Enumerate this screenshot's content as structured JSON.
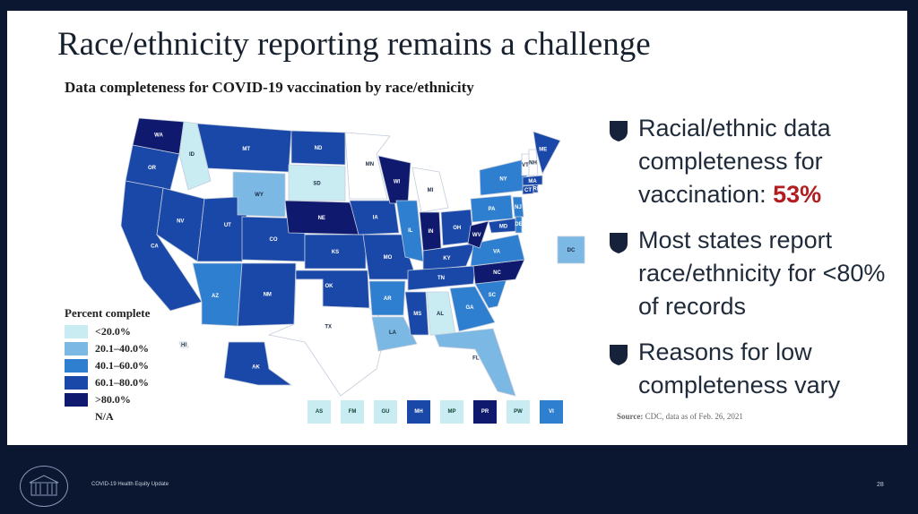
{
  "slide": {
    "title": "Race/ethnicity reporting remains a challenge",
    "subtitle": "Data completeness for COVID-19 vaccination by race/ethnicity"
  },
  "colors": {
    "lt20": "#c9ecf3",
    "r20_40": "#7cb8e4",
    "r40_60": "#2f7fd0",
    "r60_80": "#1a48a8",
    "gt80": "#0f1a6e",
    "na": "#ffffff",
    "accent": "#b01e22"
  },
  "states": [
    {
      "abbr": "WA",
      "cat": "gt80"
    },
    {
      "abbr": "OR",
      "cat": "r60_80"
    },
    {
      "abbr": "CA",
      "cat": "r60_80"
    },
    {
      "abbr": "ID",
      "cat": "lt20"
    },
    {
      "abbr": "NV",
      "cat": "r60_80"
    },
    {
      "abbr": "MT",
      "cat": "r60_80"
    },
    {
      "abbr": "WY",
      "cat": "r20_40"
    },
    {
      "abbr": "UT",
      "cat": "r60_80"
    },
    {
      "abbr": "AZ",
      "cat": "r40_60"
    },
    {
      "abbr": "CO",
      "cat": "r60_80"
    },
    {
      "abbr": "NM",
      "cat": "r60_80"
    },
    {
      "abbr": "ND",
      "cat": "r60_80"
    },
    {
      "abbr": "SD",
      "cat": "lt20"
    },
    {
      "abbr": "NE",
      "cat": "gt80"
    },
    {
      "abbr": "KS",
      "cat": "r60_80"
    },
    {
      "abbr": "OK",
      "cat": "r60_80"
    },
    {
      "abbr": "TX",
      "cat": "na"
    },
    {
      "abbr": "MN",
      "cat": "na"
    },
    {
      "abbr": "IA",
      "cat": "r60_80"
    },
    {
      "abbr": "MO",
      "cat": "r60_80"
    },
    {
      "abbr": "AR",
      "cat": "r40_60"
    },
    {
      "abbr": "LA",
      "cat": "r20_40"
    },
    {
      "abbr": "WI",
      "cat": "gt80"
    },
    {
      "abbr": "IL",
      "cat": "r40_60"
    },
    {
      "abbr": "MI",
      "cat": "na"
    },
    {
      "abbr": "IN",
      "cat": "gt80"
    },
    {
      "abbr": "OH",
      "cat": "r60_80"
    },
    {
      "abbr": "KY",
      "cat": "r60_80"
    },
    {
      "abbr": "TN",
      "cat": "r60_80"
    },
    {
      "abbr": "MS",
      "cat": "r60_80"
    },
    {
      "abbr": "AL",
      "cat": "lt20"
    },
    {
      "abbr": "GA",
      "cat": "r40_60"
    },
    {
      "abbr": "FL",
      "cat": "r20_40"
    },
    {
      "abbr": "SC",
      "cat": "r40_60"
    },
    {
      "abbr": "NC",
      "cat": "gt80"
    },
    {
      "abbr": "VA",
      "cat": "r40_60"
    },
    {
      "abbr": "WV",
      "cat": "gt80"
    },
    {
      "abbr": "PA",
      "cat": "r40_60"
    },
    {
      "abbr": "NY",
      "cat": "r40_60"
    },
    {
      "abbr": "MD",
      "cat": "r60_80"
    },
    {
      "abbr": "DE",
      "cat": "r40_60"
    },
    {
      "abbr": "NJ",
      "cat": "r40_60"
    },
    {
      "abbr": "CT",
      "cat": "r60_80"
    },
    {
      "abbr": "RI",
      "cat": "r60_80"
    },
    {
      "abbr": "MA",
      "cat": "r60_80"
    },
    {
      "abbr": "VT",
      "cat": "na"
    },
    {
      "abbr": "NH",
      "cat": "na"
    },
    {
      "abbr": "ME",
      "cat": "r60_80"
    },
    {
      "abbr": "AK",
      "cat": "r60_80"
    },
    {
      "abbr": "HI",
      "cat": "na"
    },
    {
      "abbr": "DC",
      "cat": "r20_40"
    }
  ],
  "legend": {
    "title": "Percent complete",
    "items": [
      {
        "label": "<20.0%",
        "cat": "lt20"
      },
      {
        "label": "20.1–40.0%",
        "cat": "r20_40"
      },
      {
        "label": "40.1–60.0%",
        "cat": "r40_60"
      },
      {
        "label": "60.1–80.0%",
        "cat": "r60_80"
      },
      {
        "label": ">80.0%",
        "cat": "gt80"
      },
      {
        "label": "N/A",
        "cat": "na"
      }
    ]
  },
  "territories": [
    {
      "abbr": "AS",
      "cat": "lt20"
    },
    {
      "abbr": "FM",
      "cat": "lt20"
    },
    {
      "abbr": "GU",
      "cat": "lt20"
    },
    {
      "abbr": "MH",
      "cat": "r60_80"
    },
    {
      "abbr": "MP",
      "cat": "lt20"
    },
    {
      "abbr": "PR",
      "cat": "gt80"
    },
    {
      "abbr": "PW",
      "cat": "lt20"
    },
    {
      "abbr": "VI",
      "cat": "r40_60"
    }
  ],
  "bullets": [
    {
      "text": "Racial/ethnic data completeness for vaccination: ",
      "highlight": "53%"
    },
    {
      "text": "Most states report race/ethnicity for <80% of records",
      "highlight": ""
    },
    {
      "text": "Reasons for low completeness vary",
      "highlight": ""
    }
  ],
  "source": {
    "label": "Source:",
    "text": "CDC, data as of Feb. 26, 2021"
  },
  "footer": {
    "text": "COVID-19 Health Equity Update",
    "page": "28"
  }
}
